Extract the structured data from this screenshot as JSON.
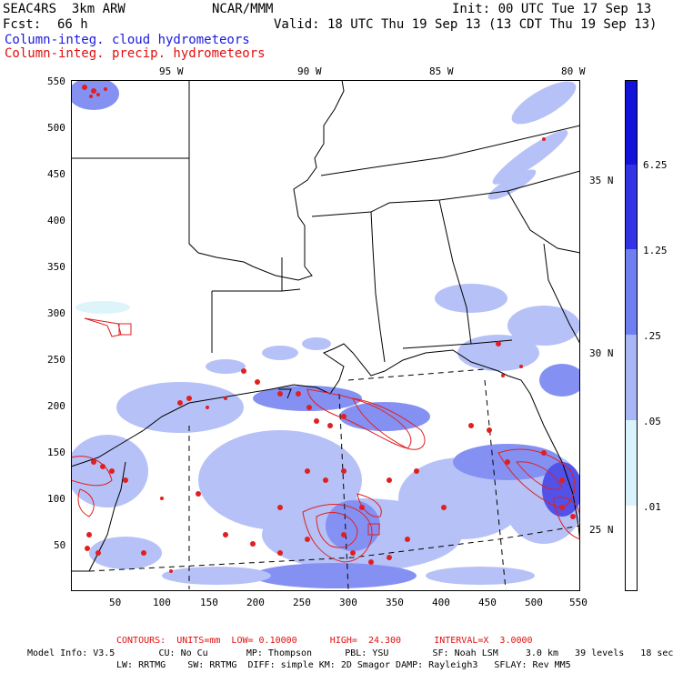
{
  "header": {
    "model": "SEAC4RS  3km ARW",
    "org": "NCAR/MMM",
    "init": "Init: 00 UTC Tue 17 Sep 13",
    "fcst_label": "Fcst:",
    "fcst_value": "66 h",
    "valid": "Valid: 18 UTC Thu 19 Sep 13 (13 CDT Thu 19 Sep 13)",
    "field1": "Column-integ. cloud hydrometeors",
    "field2": "Column-integ. precip. hydrometeors"
  },
  "map": {
    "lon_labels": [
      "95 W",
      "90 W",
      "85 W",
      "80 W"
    ],
    "lat_labels": [
      "35 N",
      "30 N",
      "25 N"
    ],
    "x_ticks": [
      "50",
      "100",
      "150",
      "200",
      "250",
      "300",
      "350",
      "400",
      "450",
      "500",
      "550"
    ],
    "y_ticks": [
      "550",
      "500",
      "450",
      "400",
      "350",
      "300",
      "250",
      "200",
      "150",
      "100",
      "50"
    ],
    "ocean_color": "#ffffff",
    "land_line_color": "#000000",
    "cloud_color": "#8a99ea",
    "precip_color": "#e02020"
  },
  "colorbar": {
    "units": "mm",
    "labels": [
      "6.25",
      "1.25",
      ".25",
      ".05",
      ".01"
    ],
    "colors": [
      "#1212d8",
      "#3333e6",
      "#6f7ef0",
      "#a9b6f6",
      "#d8f3fb",
      "#ffffff"
    ]
  },
  "footer": {
    "contours": "CONTOURS:  UNITS=mm  LOW= 0.10000      HIGH=  24.300      INTERVAL=X  3.0000",
    "model_info_1": "Model Info: V3.5        CU: No Cu       MP: Thompson      PBL: YSU        SF: Noah LSM     3.0 km   39 levels   18 sec",
    "model_info_2": "LW: RRTMG    SW: RRTMG  DIFF: simple KM: 2D Smagor DAMP: Rayleigh3   SFLAY: Rev MM5"
  }
}
